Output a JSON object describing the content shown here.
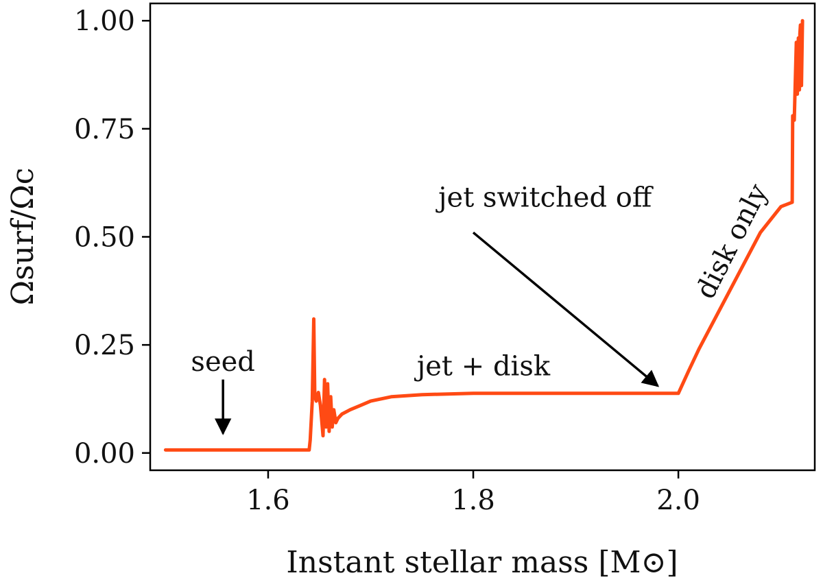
{
  "chart_data": {
    "type": "line",
    "xlabel": "Instant stellar mass [M⊙]",
    "ylabel": "Ωsurf/Ωc",
    "xlim": [
      1.485,
      2.133
    ],
    "ylim": [
      -0.04,
      1.04
    ],
    "xticks": [
      "1.6",
      "1.8",
      "2.0"
    ],
    "yticks": [
      "0.00",
      "0.25",
      "0.50",
      "0.75",
      "1.00"
    ],
    "grid": false,
    "series": [
      {
        "color": "#ff4a14",
        "x": [
          1.5,
          1.64,
          1.641,
          1.643,
          1.6445,
          1.6455,
          1.647,
          1.649,
          1.651,
          1.6535,
          1.655,
          1.6565,
          1.658,
          1.6595,
          1.661,
          1.6625,
          1.664,
          1.666,
          1.668,
          1.672,
          1.68,
          1.69,
          1.7,
          1.72,
          1.75,
          1.8,
          1.85,
          1.9,
          1.95,
          2.0,
          2.01,
          2.02,
          2.04,
          2.06,
          2.08,
          2.1,
          2.111,
          2.1115,
          2.113,
          2.114,
          2.115,
          2.116,
          2.117,
          2.118,
          2.1185,
          2.119,
          2.12,
          2.121
        ],
        "y": [
          0.007,
          0.007,
          0.03,
          0.12,
          0.31,
          0.13,
          0.12,
          0.14,
          0.11,
          0.04,
          0.17,
          0.06,
          0.16,
          0.05,
          0.13,
          0.06,
          0.1,
          0.07,
          0.08,
          0.09,
          0.1,
          0.11,
          0.12,
          0.13,
          0.135,
          0.138,
          0.138,
          0.138,
          0.138,
          0.138,
          0.19,
          0.24,
          0.33,
          0.42,
          0.51,
          0.57,
          0.58,
          0.78,
          0.77,
          0.86,
          0.95,
          0.83,
          0.96,
          0.84,
          0.97,
          0.99,
          0.85,
          1.0
        ]
      }
    ],
    "annotations": [
      {
        "text": "seed",
        "x": 1.556,
        "y": 0.19
      },
      {
        "text": "jet + disk",
        "x": 1.81,
        "y": 0.18
      },
      {
        "text": "jet switched off",
        "x": 1.87,
        "y": 0.57
      },
      {
        "text": "disk only",
        "x": 2.06,
        "y": 0.48,
        "rotation": -63
      }
    ],
    "arrows": [
      {
        "from": [
          1.556,
          0.17
        ],
        "to": [
          1.556,
          0.045
        ]
      },
      {
        "from": [
          1.8,
          0.51
        ],
        "to": [
          1.98,
          0.155
        ]
      }
    ]
  }
}
